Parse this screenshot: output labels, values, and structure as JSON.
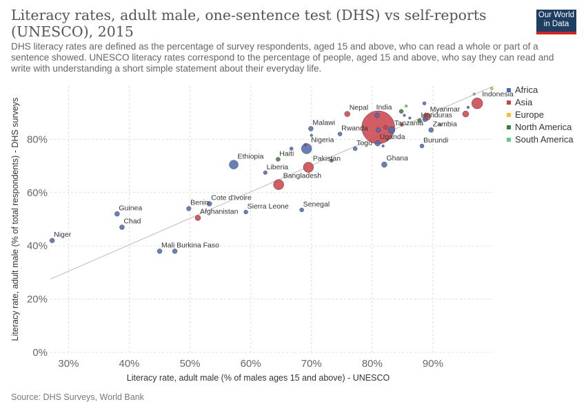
{
  "title": "Literacy rates, adult male, one-sentence test (DHS) vs self-reports (UNESCO), 2015",
  "subtitle": "DHS literacy rates are defined as the percentage of survey respondents, aged 15 and above, who can read a whole or part of a sentence showed. UNESCO literacy rates correspond to the percentage of people, aged 15 and above, who say they can read and write with understanding a short simple statement about their everyday life.",
  "logo": {
    "line1": "Our World",
    "line2": "in Data"
  },
  "source": "Source: DHS Surveys, World Bank",
  "colors": {
    "Africa": "#4c6ab0",
    "Asia": "#c9414a",
    "Europe": "#f2c12e",
    "North America": "#3e7d3e",
    "South America": "#6cc98e"
  },
  "chart_data": {
    "type": "scatter",
    "xlabel": "Literacy rate, adult male (% of males ages 15 and above) - UNESCO",
    "ylabel": "Literacy rate, adult male (% of total respondents) - DHS surveys",
    "xlim": [
      27,
      100
    ],
    "ylim": [
      0,
      100
    ],
    "xticks": [
      30,
      40,
      50,
      60,
      70,
      80,
      90
    ],
    "yticks": [
      0,
      20,
      40,
      60,
      80
    ],
    "tick_suffix": "%",
    "grid": true,
    "trendline": true,
    "legend_position": "right",
    "legend": [
      "Africa",
      "Asia",
      "Europe",
      "North America",
      "South America"
    ],
    "points": [
      {
        "label": "Niger",
        "x": 27.3,
        "y": 42,
        "region": "Africa",
        "size": 3.5
      },
      {
        "label": "Guinea",
        "x": 38.0,
        "y": 52,
        "region": "Africa",
        "size": 3.5
      },
      {
        "label": "Chad",
        "x": 38.8,
        "y": 47,
        "region": "Africa",
        "size": 3.5
      },
      {
        "label": "Mali",
        "x": 45.0,
        "y": 38,
        "region": "Africa",
        "size": 3.5
      },
      {
        "label": "Burkina Faso",
        "x": 47.5,
        "y": 38,
        "region": "Africa",
        "size": 3.5
      },
      {
        "label": "Benin",
        "x": 49.8,
        "y": 54,
        "region": "Africa",
        "size": 3.3
      },
      {
        "label": "Afghanistan",
        "x": 51.3,
        "y": 50.5,
        "region": "Asia",
        "size": 4
      },
      {
        "label": "Cote d'Ivoire",
        "x": 53.2,
        "y": 55.8,
        "region": "Africa",
        "size": 3.5
      },
      {
        "label": "Ethiopia",
        "x": 57.2,
        "y": 70.5,
        "region": "Africa",
        "size": 6.5
      },
      {
        "label": "Sierra Leone",
        "x": 59.2,
        "y": 52.7,
        "region": "Africa",
        "size": 3
      },
      {
        "label": "Liberia",
        "x": 62.4,
        "y": 67.5,
        "region": "Africa",
        "size": 2.8
      },
      {
        "label": "Haiti",
        "x": 64.5,
        "y": 72.5,
        "region": "North America",
        "size": 3
      },
      {
        "label": "Bangladesh",
        "x": 64.6,
        "y": 63,
        "region": "Asia",
        "size": 7.5
      },
      {
        "label": "",
        "x": 66.7,
        "y": 76.5,
        "region": "Africa",
        "size": 2.5
      },
      {
        "label": "Senegal",
        "x": 68.4,
        "y": 53.5,
        "region": "Africa",
        "size": 3
      },
      {
        "label": "Nigeria",
        "x": 69.2,
        "y": 76.5,
        "region": "Africa",
        "size": 7.5
      },
      {
        "label": "",
        "x": 69.0,
        "y": 78,
        "region": "Asia",
        "size": 2
      },
      {
        "label": "Pakistan",
        "x": 69.5,
        "y": 69.5,
        "region": "Asia",
        "size": 7.5
      },
      {
        "label": "Malawi",
        "x": 69.9,
        "y": 84,
        "region": "Africa",
        "size": 3.5
      },
      {
        "label": "",
        "x": 70.0,
        "y": 81.5,
        "region": "Africa",
        "size": 1.8
      },
      {
        "label": "",
        "x": 73.3,
        "y": 72,
        "region": "Africa",
        "size": 2.5
      },
      {
        "label": "Rwanda",
        "x": 74.7,
        "y": 82,
        "region": "Africa",
        "size": 3
      },
      {
        "label": "Nepal",
        "x": 75.9,
        "y": 89.5,
        "region": "Asia",
        "size": 4
      },
      {
        "label": "Togo",
        "x": 77.2,
        "y": 76.5,
        "region": "Africa",
        "size": 3
      },
      {
        "label": "India",
        "x": 81.0,
        "y": 84.5,
        "region": "Asia",
        "size": 24
      },
      {
        "label": "",
        "x": 80.8,
        "y": 89,
        "region": "Africa",
        "size": 3.5
      },
      {
        "label": "",
        "x": 81.0,
        "y": 83.5,
        "region": "Africa",
        "size": 3.5
      },
      {
        "label": "Uganda",
        "x": 80.9,
        "y": 78.5,
        "region": "Africa",
        "size": 4
      },
      {
        "label": "",
        "x": 81.8,
        "y": 77.5,
        "region": "Africa",
        "size": 1.8
      },
      {
        "label": "",
        "x": 82.2,
        "y": 84.5,
        "region": "Asia",
        "size": 3
      },
      {
        "label": "Ghana",
        "x": 82.0,
        "y": 70.5,
        "region": "Africa",
        "size": 4
      },
      {
        "label": "Tanzania",
        "x": 83.2,
        "y": 83.5,
        "region": "Africa",
        "size": 5
      },
      {
        "label": "",
        "x": 84.9,
        "y": 85.5,
        "region": "Asia",
        "size": 2.5
      },
      {
        "label": "",
        "x": 84.8,
        "y": 90.5,
        "region": "North America",
        "size": 3
      },
      {
        "label": "",
        "x": 85.6,
        "y": 92.5,
        "region": "South America",
        "size": 1.8
      },
      {
        "label": "",
        "x": 85.3,
        "y": 89,
        "region": "Africa",
        "size": 1.8
      },
      {
        "label": "",
        "x": 86.2,
        "y": 88,
        "region": "Africa",
        "size": 1.8
      },
      {
        "label": "Honduras",
        "x": 87.8,
        "y": 87,
        "region": "North America",
        "size": 3
      },
      {
        "label": "",
        "x": 88.7,
        "y": 87.5,
        "region": "Africa",
        "size": 3.5
      },
      {
        "label": "",
        "x": 88.6,
        "y": 93.5,
        "region": "Africa",
        "size": 2.5
      },
      {
        "label": "Myanmar",
        "x": 89.0,
        "y": 88.5,
        "region": "Asia",
        "size": 5.5
      },
      {
        "label": "Burundi",
        "x": 88.2,
        "y": 77.5,
        "region": "Africa",
        "size": 3
      },
      {
        "label": "Zambia",
        "x": 89.7,
        "y": 83.5,
        "region": "Africa",
        "size": 3.5
      },
      {
        "label": "",
        "x": 91.2,
        "y": 85.5,
        "region": "South America",
        "size": 2
      },
      {
        "label": "",
        "x": 95.4,
        "y": 89.5,
        "region": "Asia",
        "size": 4.5
      },
      {
        "label": "",
        "x": 95.8,
        "y": 92,
        "region": "Africa",
        "size": 1.8
      },
      {
        "label": "Indonesia",
        "x": 97.3,
        "y": 93.5,
        "region": "Asia",
        "size": 8
      },
      {
        "label": "",
        "x": 96.8,
        "y": 97,
        "region": "South America",
        "size": 1.8
      },
      {
        "label": "",
        "x": 99.7,
        "y": 99,
        "region": "Europe",
        "size": 1.8
      }
    ]
  }
}
